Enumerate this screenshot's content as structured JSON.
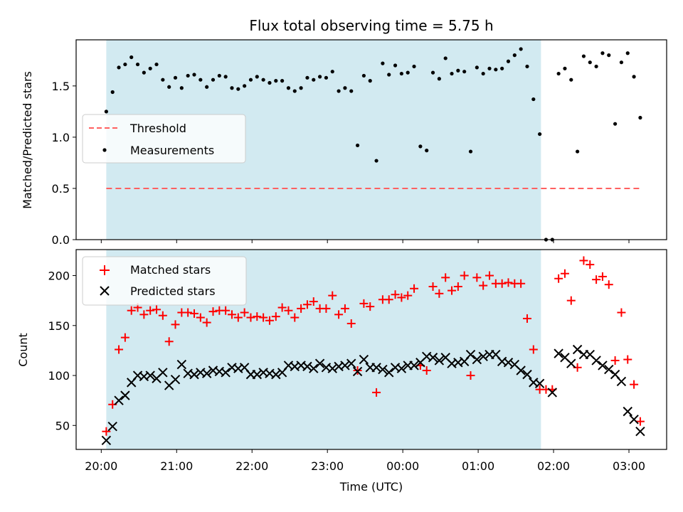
{
  "figure": {
    "title": "Flux total observing time = 5.75 h",
    "xlabel": "Time (UTC)",
    "x_ticks": [
      "20:00",
      "21:00",
      "22:00",
      "23:00",
      "00:00",
      "01:00",
      "02:00",
      "03:00"
    ]
  },
  "chart_data": [
    {
      "type": "scatter",
      "title": "Flux total observing time = 5.75 h",
      "ylabel": "Matched/Predicted stars",
      "ylim": [
        0,
        1.95
      ],
      "yticks": [
        "0.0",
        "0.5",
        "1.0",
        "1.5"
      ],
      "xlim": [
        "19:40",
        "03:30"
      ],
      "x_unit": "time (UTC)",
      "shaded_region": {
        "start": "20:04",
        "end": "01:50",
        "color": "#add8e6"
      },
      "legend": {
        "placement": "center-left"
      },
      "series": [
        {
          "name": "Threshold",
          "kind": "dashed-line",
          "color": "#ff6060",
          "x": [
            "20:04",
            "03:10"
          ],
          "y": [
            0.5,
            0.5
          ]
        },
        {
          "name": "Measurements",
          "kind": "dots",
          "color": "#000000",
          "x": [
            "20:04",
            "20:09",
            "20:14",
            "20:19",
            "20:24",
            "20:29",
            "20:34",
            "20:39",
            "20:44",
            "20:49",
            "20:54",
            "20:59",
            "21:04",
            "21:09",
            "21:14",
            "21:19",
            "21:24",
            "21:29",
            "21:34",
            "21:39",
            "21:44",
            "21:49",
            "21:54",
            "21:59",
            "22:04",
            "22:09",
            "22:14",
            "22:19",
            "22:24",
            "22:29",
            "22:34",
            "22:39",
            "22:44",
            "22:49",
            "22:54",
            "22:59",
            "23:04",
            "23:09",
            "23:14",
            "23:19",
            "23:24",
            "23:29",
            "23:34",
            "23:39",
            "23:44",
            "23:49",
            "23:54",
            "23:59",
            "00:04",
            "00:09",
            "00:14",
            "00:19",
            "00:24",
            "00:29",
            "00:34",
            "00:39",
            "00:44",
            "00:49",
            "00:54",
            "00:59",
            "01:04",
            "01:09",
            "01:14",
            "01:19",
            "01:24",
            "01:29",
            "01:34",
            "01:39",
            "01:44",
            "01:49",
            "01:54",
            "01:59",
            "02:04",
            "02:09",
            "02:14",
            "02:19",
            "02:24",
            "02:29",
            "02:34",
            "02:39",
            "02:44",
            "02:49",
            "02:54",
            "02:59",
            "03:04",
            "03:09"
          ],
          "y": [
            1.25,
            1.44,
            1.68,
            1.71,
            1.78,
            1.71,
            1.63,
            1.67,
            1.71,
            1.56,
            1.49,
            1.58,
            1.48,
            1.6,
            1.61,
            1.56,
            1.49,
            1.56,
            1.6,
            1.59,
            1.48,
            1.47,
            1.5,
            1.56,
            1.59,
            1.56,
            1.53,
            1.55,
            1.55,
            1.48,
            1.45,
            1.48,
            1.58,
            1.56,
            1.59,
            1.58,
            1.64,
            1.45,
            1.48,
            1.45,
            0.92,
            1.6,
            1.55,
            0.77,
            1.72,
            1.61,
            1.7,
            1.62,
            1.63,
            1.69,
            0.91,
            0.87,
            1.63,
            1.57,
            1.77,
            1.62,
            1.65,
            1.64,
            0.86,
            1.68,
            1.62,
            1.67,
            1.66,
            1.67,
            1.74,
            1.8,
            1.86,
            1.69,
            1.37,
            1.03,
            0.0,
            0.0,
            1.62,
            1.67,
            1.56,
            0.86,
            1.79,
            1.73,
            1.69,
            1.82,
            1.8,
            1.13,
            1.73,
            1.82,
            1.59,
            1.19
          ]
        }
      ]
    },
    {
      "type": "scatter",
      "ylabel": "Count",
      "xlabel": "Time (UTC)",
      "ylim": [
        26,
        226
      ],
      "yticks": [
        "50",
        "100",
        "150",
        "200"
      ],
      "xlim": [
        "19:40",
        "03:30"
      ],
      "x_unit": "time (UTC)",
      "shaded_region": {
        "start": "20:04",
        "end": "01:50",
        "color": "#add8e6"
      },
      "legend": {
        "placement": "top-left"
      },
      "series": [
        {
          "name": "Matched stars",
          "marker": "plus",
          "color": "#ff0000",
          "x": [
            "20:04",
            "20:09",
            "20:14",
            "20:19",
            "20:24",
            "20:29",
            "20:34",
            "20:39",
            "20:44",
            "20:49",
            "20:54",
            "20:59",
            "21:04",
            "21:09",
            "21:14",
            "21:19",
            "21:24",
            "21:29",
            "21:34",
            "21:39",
            "21:44",
            "21:49",
            "21:54",
            "21:59",
            "22:04",
            "22:09",
            "22:14",
            "22:19",
            "22:24",
            "22:29",
            "22:34",
            "22:39",
            "22:44",
            "22:49",
            "22:54",
            "22:59",
            "23:04",
            "23:09",
            "23:14",
            "23:19",
            "23:24",
            "23:29",
            "23:34",
            "23:39",
            "23:44",
            "23:49",
            "23:54",
            "23:59",
            "00:04",
            "00:09",
            "00:14",
            "00:19",
            "00:24",
            "00:29",
            "00:34",
            "00:39",
            "00:44",
            "00:49",
            "00:54",
            "00:59",
            "01:04",
            "01:09",
            "01:14",
            "01:19",
            "01:24",
            "01:29",
            "01:34",
            "01:39",
            "01:44",
            "01:49",
            "01:54",
            "01:59",
            "02:04",
            "02:09",
            "02:14",
            "02:19",
            "02:24",
            "02:29",
            "02:34",
            "02:39",
            "02:44",
            "02:49",
            "02:54",
            "02:59",
            "03:04",
            "03:09"
          ],
          "y": [
            44,
            71,
            126,
            138,
            165,
            168,
            161,
            165,
            166,
            160,
            134,
            151,
            163,
            163,
            162,
            158,
            153,
            164,
            165,
            165,
            161,
            158,
            163,
            158,
            159,
            158,
            155,
            159,
            168,
            165,
            158,
            167,
            171,
            174,
            167,
            167,
            180,
            161,
            167,
            152,
            105,
            172,
            169,
            83,
            176,
            176,
            181,
            178,
            180,
            187,
            110,
            105,
            189,
            182,
            198,
            185,
            189,
            200,
            100,
            198,
            190,
            200,
            192,
            192,
            193,
            192,
            192,
            157,
            126,
            86,
            86,
            86,
            197,
            202,
            175,
            108,
            215,
            211,
            196,
            199,
            191,
            115,
            163,
            116,
            91,
            54
          ]
        },
        {
          "name": "Predicted stars",
          "marker": "x",
          "color": "#000000",
          "x": [
            "20:04",
            "20:09",
            "20:14",
            "20:19",
            "20:24",
            "20:29",
            "20:34",
            "20:39",
            "20:44",
            "20:49",
            "20:54",
            "20:59",
            "21:04",
            "21:09",
            "21:14",
            "21:19",
            "21:24",
            "21:29",
            "21:34",
            "21:39",
            "21:44",
            "21:49",
            "21:54",
            "21:59",
            "22:04",
            "22:09",
            "22:14",
            "22:19",
            "22:24",
            "22:29",
            "22:34",
            "22:39",
            "22:44",
            "22:49",
            "22:54",
            "22:59",
            "23:04",
            "23:09",
            "23:14",
            "23:19",
            "23:24",
            "23:29",
            "23:34",
            "23:39",
            "23:44",
            "23:49",
            "23:54",
            "23:59",
            "00:04",
            "00:09",
            "00:14",
            "00:19",
            "00:24",
            "00:29",
            "00:34",
            "00:39",
            "00:44",
            "00:49",
            "00:54",
            "00:59",
            "01:04",
            "01:09",
            "01:14",
            "01:19",
            "01:24",
            "01:29",
            "01:34",
            "01:39",
            "01:44",
            "01:49",
            "01:59",
            "02:04",
            "02:09",
            "02:14",
            "02:19",
            "02:24",
            "02:29",
            "02:34",
            "02:39",
            "02:44",
            "02:49",
            "02:54",
            "02:59",
            "03:04",
            "03:09"
          ],
          "y": [
            35,
            49,
            75,
            80,
            93,
            100,
            99,
            100,
            97,
            103,
            90,
            96,
            111,
            102,
            101,
            103,
            102,
            105,
            104,
            103,
            108,
            107,
            108,
            101,
            101,
            103,
            102,
            101,
            103,
            110,
            109,
            110,
            109,
            107,
            112,
            108,
            107,
            109,
            110,
            112,
            104,
            116,
            108,
            108,
            106,
            103,
            108,
            107,
            110,
            110,
            113,
            119,
            118,
            115,
            118,
            112,
            113,
            114,
            121,
            116,
            119,
            121,
            121,
            114,
            113,
            111,
            105,
            101,
            93,
            92,
            83,
            122,
            118,
            112,
            126,
            121,
            121,
            115,
            110,
            106,
            101,
            94,
            64,
            56,
            44
          ]
        }
      ]
    }
  ]
}
